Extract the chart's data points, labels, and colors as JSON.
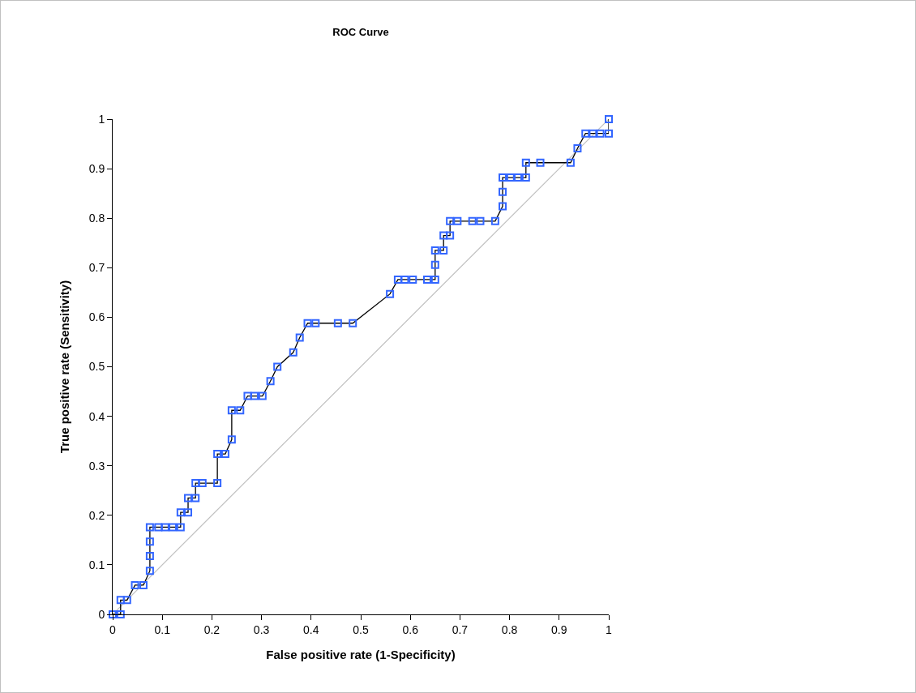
{
  "chart_data": {
    "type": "line",
    "title": "ROC Curve",
    "xlabel": "False positive rate (1-Specificity)",
    "ylabel": "True positive rate (Sensitivity)",
    "xlim": [
      0,
      1
    ],
    "ylim": [
      0,
      1
    ],
    "xticks": [
      0,
      0.1,
      0.2,
      0.3,
      0.4,
      0.5,
      0.6,
      0.7,
      0.8,
      0.9,
      1
    ],
    "yticks": [
      0,
      0.1,
      0.2,
      0.3,
      0.4,
      0.5,
      0.6,
      0.7,
      0.8,
      0.9,
      1
    ],
    "series": [
      {
        "color": "#c0c0c0",
        "marker": "none",
        "x": [
          0,
          1
        ],
        "values": [
          0,
          1
        ]
      },
      {
        "color": "#000000",
        "colors": [
          "#3366ff",
          "#3366ff",
          "#3366ff",
          "#3366ff",
          "#3366ff",
          "#3366ff",
          "#3366ff",
          "#3366ff",
          "#3366ff",
          "#3366ff",
          "#3366ff",
          "#3366ff",
          "#3366ff",
          "#3366ff",
          "#3366ff",
          "#3366ff",
          "#3366ff",
          "#3366ff",
          "#3366ff",
          "#3366ff",
          "#3366ff",
          "#3366ff",
          "#3366ff",
          "#3366ff",
          "#3366ff",
          "#3366ff",
          "#3366ff",
          "#3366ff",
          "#3366ff",
          "#3366ff",
          "#3366ff",
          "#3366ff",
          "#3366ff",
          "#3366ff",
          "#3366ff",
          "#3366ff",
          "#3366ff",
          "#3366ff",
          "#3366ff",
          "#3366ff",
          "#3366ff",
          "#3366ff",
          "#3366ff",
          "#3366ff",
          "#3366ff",
          "#3366ff",
          "#3366ff",
          "#3366ff",
          "#3366ff",
          "#3366ff",
          "#3366ff",
          "#3366ff",
          "#3366ff",
          "#3366ff",
          "#3366ff",
          "#3366ff",
          "#3366ff",
          "#3366ff",
          "#3366ff",
          "#3366ff",
          "#3366ff",
          "#3366ff",
          "#3366ff",
          "#3366ff",
          "#3366ff",
          "#3366ff",
          "#3366ff",
          "#3366ff"
        ],
        "marker": "square",
        "x": [
          0,
          0.016,
          0.016,
          0.029,
          0.045,
          0.062,
          0.075,
          0.075,
          0.075,
          0.075,
          0.092,
          0.106,
          0.121,
          0.137,
          0.137,
          0.152,
          0.152,
          0.167,
          0.167,
          0.181,
          0.211,
          0.211,
          0.227,
          0.24,
          0.24,
          0.257,
          0.272,
          0.286,
          0.302,
          0.318,
          0.332,
          0.364,
          0.377,
          0.393,
          0.409,
          0.454,
          0.484,
          0.559,
          0.575,
          0.589,
          0.605,
          0.634,
          0.65,
          0.65,
          0.65,
          0.667,
          0.667,
          0.68,
          0.68,
          0.695,
          0.725,
          0.741,
          0.771,
          0.786,
          0.786,
          0.786,
          0.802,
          0.817,
          0.833,
          0.833,
          0.862,
          0.923,
          0.937,
          0.953,
          0.968,
          0.983,
          1,
          1
        ],
        "values": [
          0,
          0,
          0.029,
          0.029,
          0.059,
          0.059,
          0.088,
          0.118,
          0.147,
          0.176,
          0.176,
          0.176,
          0.176,
          0.176,
          0.206,
          0.206,
          0.235,
          0.235,
          0.265,
          0.265,
          0.265,
          0.324,
          0.324,
          0.353,
          0.412,
          0.412,
          0.441,
          0.441,
          0.441,
          0.471,
          0.5,
          0.529,
          0.559,
          0.588,
          0.588,
          0.588,
          0.588,
          0.647,
          0.676,
          0.676,
          0.676,
          0.676,
          0.676,
          0.706,
          0.735,
          0.735,
          0.765,
          0.765,
          0.794,
          0.794,
          0.794,
          0.794,
          0.794,
          0.824,
          0.853,
          0.882,
          0.882,
          0.882,
          0.882,
          0.912,
          0.912,
          0.912,
          0.941,
          0.971,
          0.971,
          0.971,
          0.971,
          1
        ]
      }
    ]
  }
}
